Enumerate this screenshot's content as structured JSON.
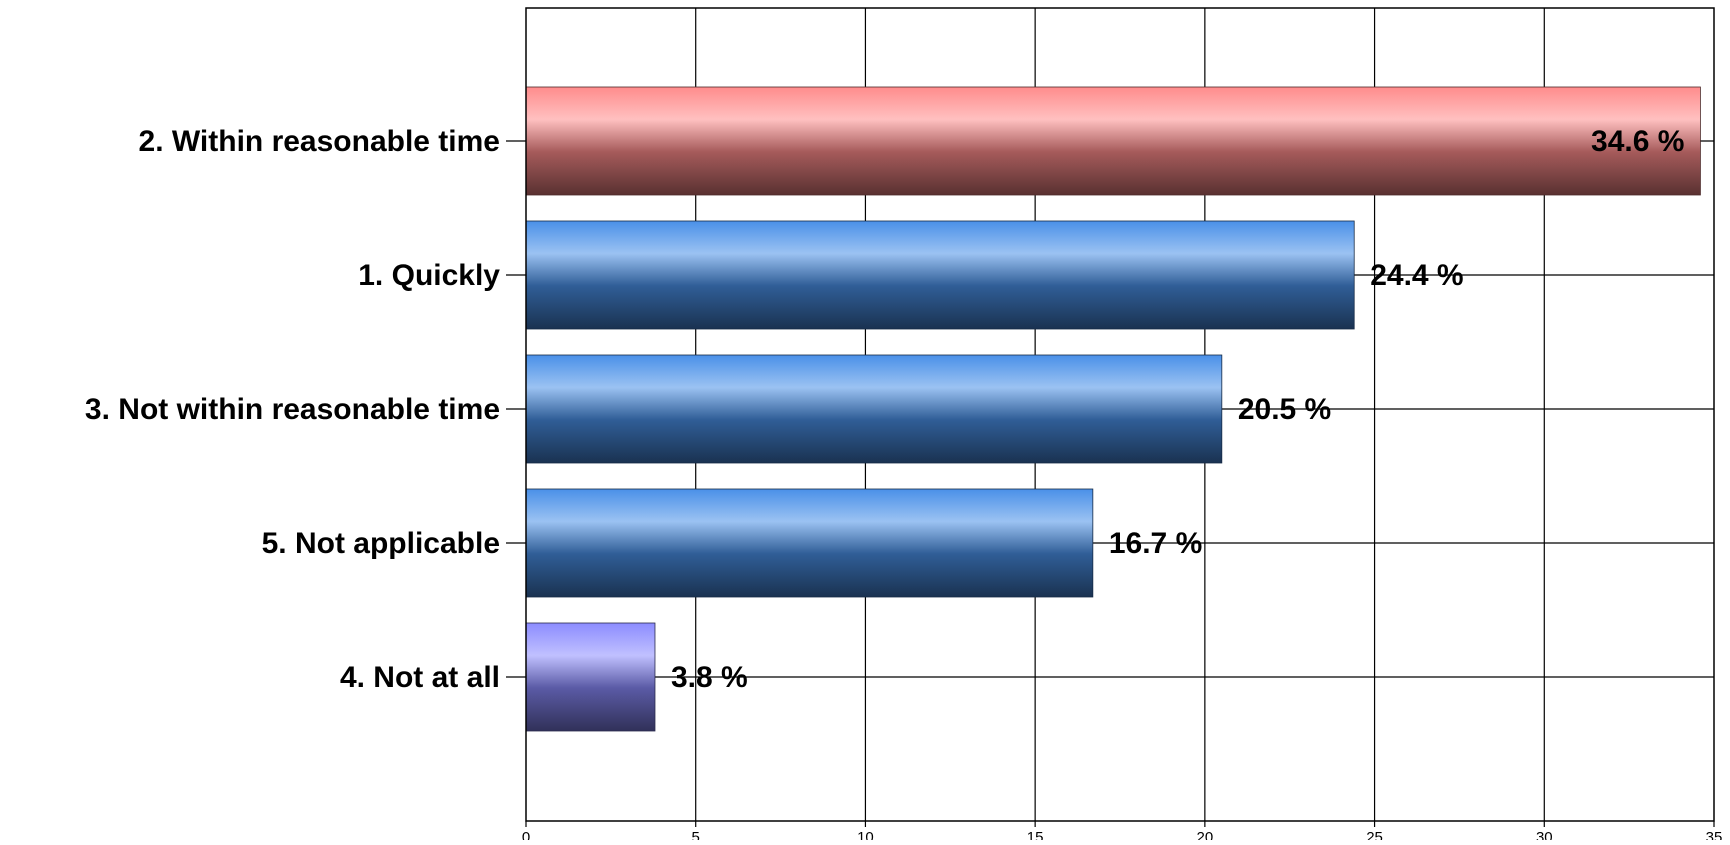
{
  "chart_data": {
    "type": "bar",
    "orientation": "horizontal",
    "title": "",
    "xlabel": "",
    "ylabel": "",
    "categories": [
      "2. Within reasonable time",
      "1. Quickly",
      "3. Not within reasonable time",
      "5. Not applicable",
      "4. Not at all"
    ],
    "values": [
      34.6,
      24.4,
      20.5,
      16.7,
      3.8
    ],
    "value_labels": [
      "34.6 %",
      "24.4 %",
      "20.5 %",
      "16.7 %",
      "3.8 %"
    ],
    "bar_colors": [
      "#ff8c8c",
      "#4a90e8",
      "#4a90e8",
      "#4a90e8",
      "#8c8cff"
    ],
    "xlim": [
      0,
      35
    ],
    "xticks": [
      0,
      5,
      10,
      15,
      20,
      25,
      30,
      35
    ],
    "grid": true,
    "legend": "none"
  }
}
